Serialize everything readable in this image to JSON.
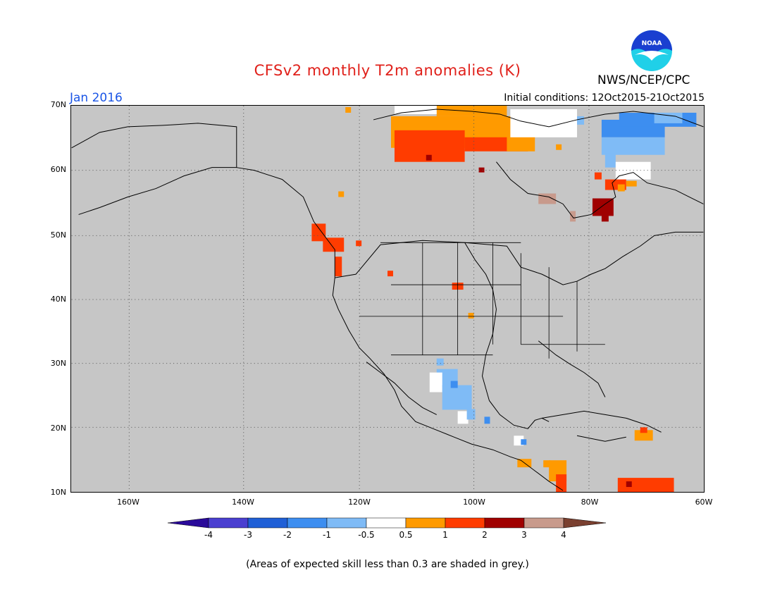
{
  "header": {
    "title": "CFSv2 monthly T2m anomalies (K)",
    "month": "Jan 2016",
    "initial_conditions": "Initial conditions: 12Oct2015-21Oct2015",
    "agency": "NWS/NCEP/CPC",
    "logo_text": "NOAA"
  },
  "map": {
    "projection": "cylindrical lat-lon",
    "lon_range": [
      "170W",
      "60W"
    ],
    "lat_range": [
      "10N",
      "70N"
    ],
    "background_color": "#c6c6c6",
    "grid": true,
    "lat_labels": [
      "70N",
      "60N",
      "50N",
      "40N",
      "30N",
      "20N",
      "10N"
    ],
    "lon_labels": [
      "160W",
      "140W",
      "120W",
      "100W",
      "80W",
      "60W"
    ]
  },
  "colorbar": {
    "labels": [
      "-4",
      "-3",
      "-2",
      "-1",
      "-0.5",
      "0.5",
      "1",
      "2",
      "3",
      "4"
    ],
    "colors": [
      "#2a0a9a",
      "#4a3fd0",
      "#1f5fd6",
      "#3d8ef0",
      "#7fbbf6",
      "#ffffff",
      "#ff9a00",
      "#ff3c00",
      "#a00000",
      "#c89a8c",
      "#7a4030"
    ]
  },
  "note": "(Areas of expected skill less than 0.3 are shaded in grey.)"
}
